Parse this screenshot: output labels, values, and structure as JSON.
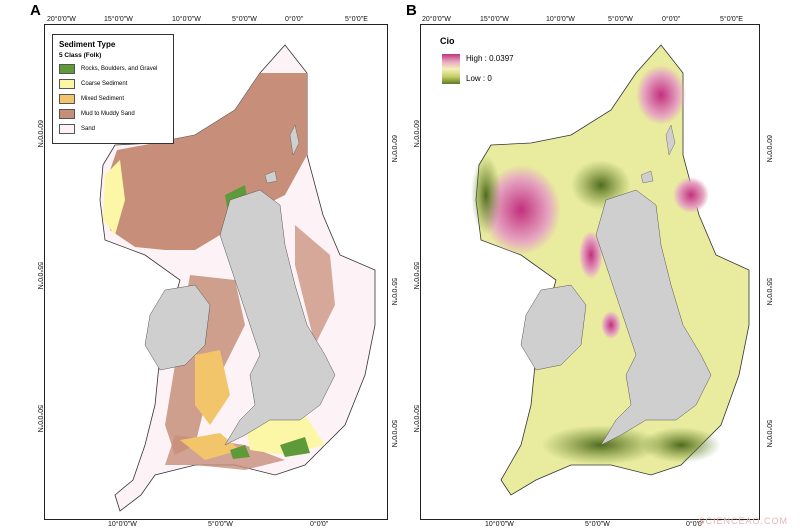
{
  "panels": {
    "a": {
      "letter": "A"
    },
    "b": {
      "letter": "B"
    }
  },
  "axis_labels": {
    "top_a": [
      "20°0'0\"W",
      "15°0'0\"W",
      "10°0'0\"W",
      "5°0'0\"W",
      "0°0'0\"",
      "5°0'0\"E"
    ],
    "top_b": [
      "20°0'0\"W",
      "15°0'0\"W",
      "10°0'0\"W",
      "5°0'0\"W",
      "0°0'0\"",
      "5°0'0\"E"
    ],
    "bottom_a": [
      "10°0'0\"W",
      "5°0'0\"W",
      "0°0'0\""
    ],
    "bottom_b": [
      "10°0'0\"W",
      "5°0'0\"W",
      "0°0'0\""
    ],
    "lat": [
      "60°0'0\"N",
      "55°0'0\"N",
      "50°0'0\"N"
    ]
  },
  "legend_a": {
    "title": "Sediment Type",
    "subtitle": "5 Class (Folk)",
    "items": [
      {
        "label": "Rocks, Boulders, and Gravel",
        "color": "#5f9a3a"
      },
      {
        "label": "Coarse Sediment",
        "color": "#fbf7a6"
      },
      {
        "label": "Mixed Sediment",
        "color": "#f2c56a"
      },
      {
        "label": "Mud to Muddy Sand",
        "color": "#c78f7a"
      },
      {
        "label": "Sand",
        "color": "#fdf3f7"
      }
    ]
  },
  "legend_b": {
    "title": "Cio",
    "high": "High : 0.0397",
    "low": "Low : 0"
  },
  "colors": {
    "land": "#cfcfcf",
    "mud": "#c78f7a",
    "sand": "#fdf3f7",
    "coarse": "#fbf7a6",
    "mixed": "#f2c56a",
    "rock": "#5f9a3a",
    "cio_base": "#e9ec9f",
    "cio_dark": "#6d8a2e",
    "cio_high": "#c2307e"
  },
  "watermark": "SCIENCEAO.COM"
}
